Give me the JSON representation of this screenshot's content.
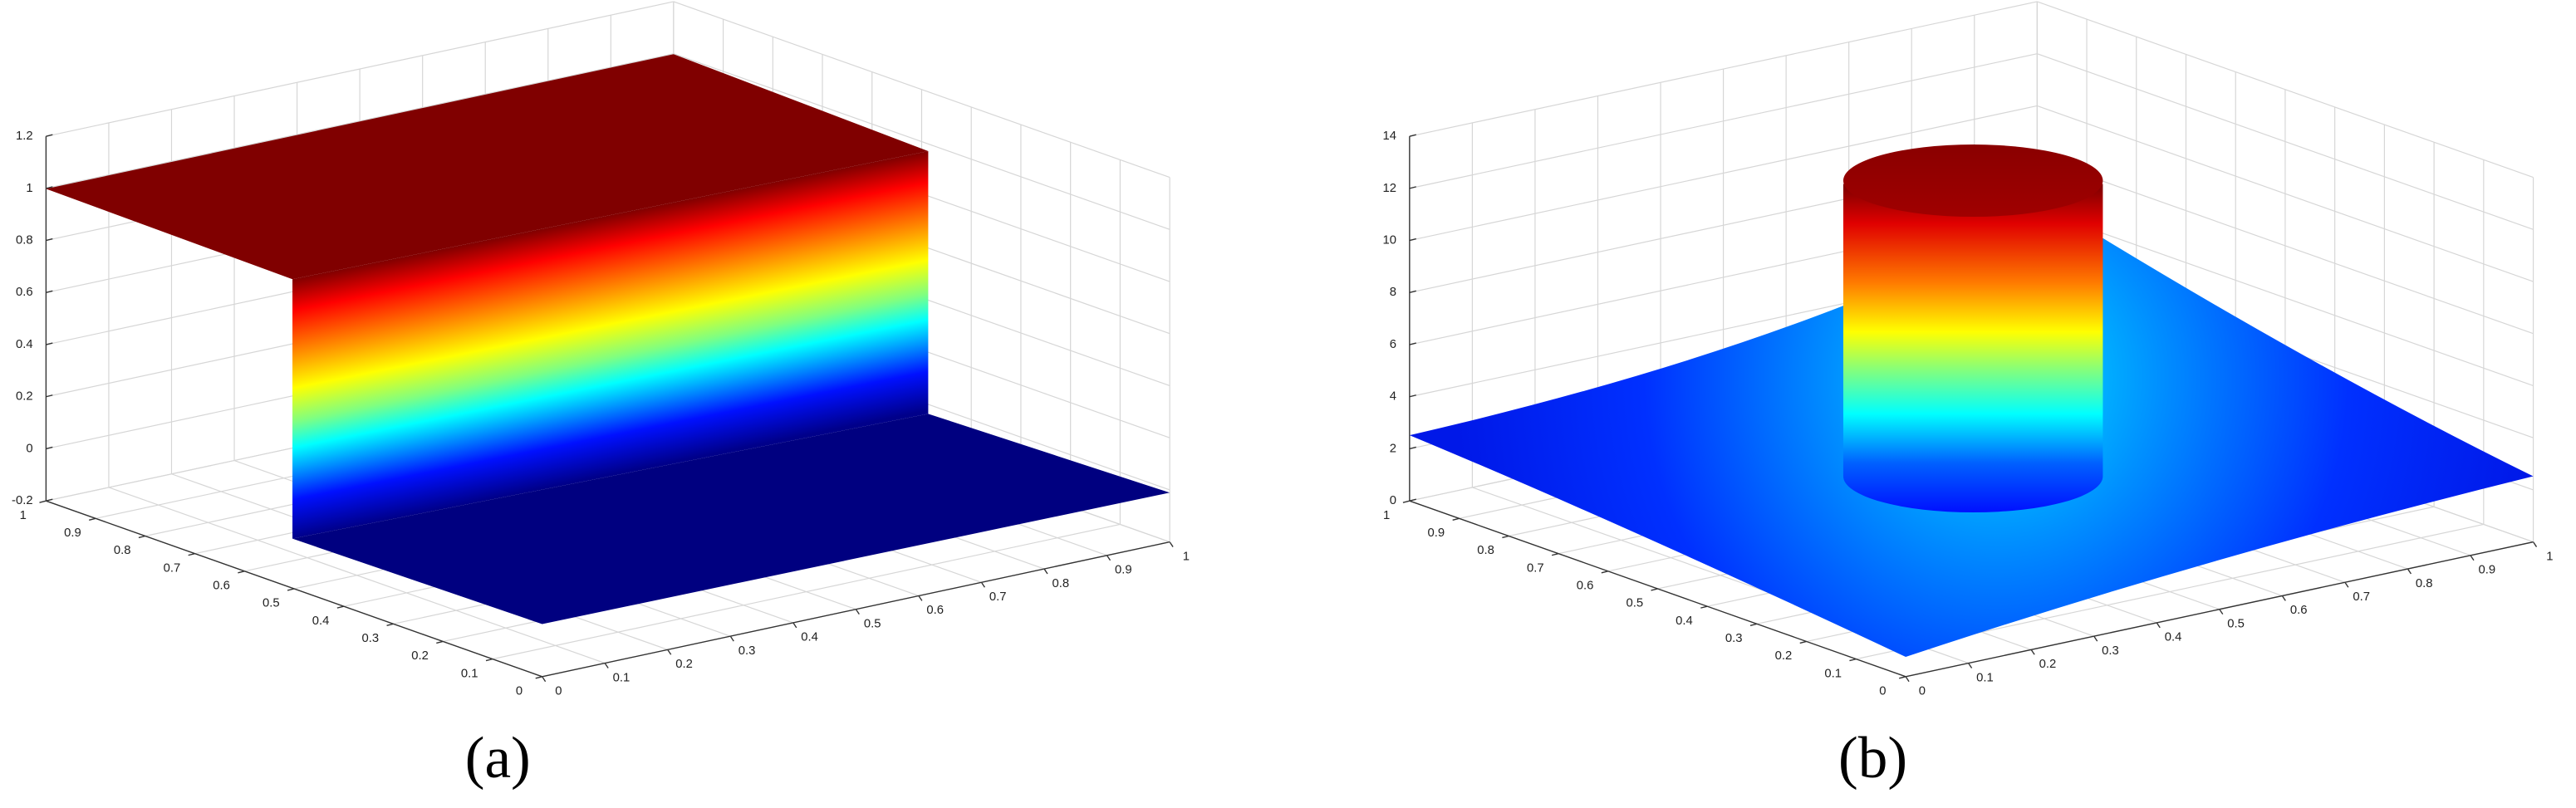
{
  "chart_data": [
    {
      "type": "surface",
      "label": "(a)",
      "xlim": [
        0,
        1
      ],
      "xticks": [
        0,
        0.1,
        0.2,
        0.3,
        0.4,
        0.5,
        0.6,
        0.7,
        0.8,
        0.9,
        1
      ],
      "ylim": [
        0,
        1
      ],
      "yticks": [
        0,
        0.1,
        0.2,
        0.3,
        0.4,
        0.5,
        0.6,
        0.7,
        0.8,
        0.9,
        1
      ],
      "zlim": [
        -0.2,
        1.2
      ],
      "zticks": [
        -0.2,
        0,
        0.2,
        0.4,
        0.6,
        0.8,
        1,
        1.2
      ],
      "grid": true
    },
    {
      "type": "surface",
      "label": "(b)",
      "xlim": [
        0,
        1
      ],
      "xticks": [
        0,
        0.1,
        0.2,
        0.3,
        0.4,
        0.5,
        0.6,
        0.7,
        0.8,
        0.9,
        1
      ],
      "ylim": [
        0,
        1
      ],
      "yticks": [
        0,
        0.1,
        0.2,
        0.3,
        0.4,
        0.5,
        0.6,
        0.7,
        0.8,
        0.9,
        1
      ],
      "zlim": [
        0,
        14
      ],
      "zticks": [
        0,
        2,
        4,
        6,
        8,
        10,
        12,
        14
      ],
      "grid": true
    }
  ]
}
